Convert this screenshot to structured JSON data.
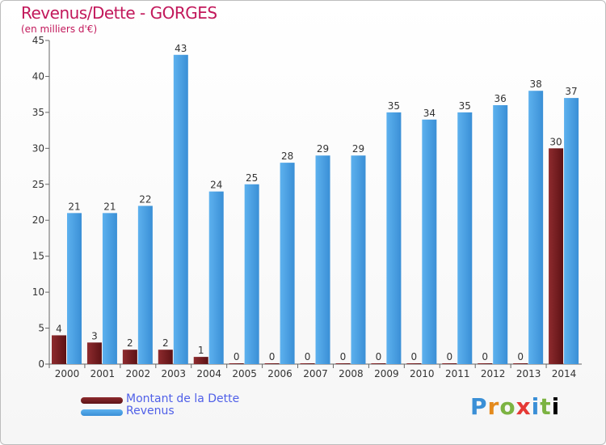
{
  "title": "Revenus/Dette - GORGES",
  "subtitle": "(en milliers d'€)",
  "logo": "Proxiti",
  "colors": {
    "dette": "#7a1f22",
    "revenus": "#4aa0e0",
    "title": "#c2185b",
    "legend_text": "#5060e8"
  },
  "chart_data": {
    "type": "bar",
    "categories": [
      "2000",
      "2001",
      "2002",
      "2003",
      "2004",
      "2005",
      "2006",
      "2007",
      "2008",
      "2009",
      "2010",
      "2011",
      "2012",
      "2013",
      "2014"
    ],
    "series": [
      {
        "name": "Montant de la Dette",
        "values": [
          4,
          3,
          2,
          2,
          1,
          0,
          0,
          0,
          0,
          0,
          0,
          0,
          0,
          0,
          30
        ]
      },
      {
        "name": "Revenus",
        "values": [
          21,
          21,
          22,
          43,
          24,
          25,
          28,
          29,
          29,
          35,
          34,
          35,
          36,
          38,
          37
        ]
      }
    ],
    "ylim": [
      0,
      45
    ],
    "yticks": [
      0,
      5,
      10,
      15,
      20,
      25,
      30,
      35,
      40,
      45
    ],
    "grid": false,
    "legend": "bottom-left"
  }
}
